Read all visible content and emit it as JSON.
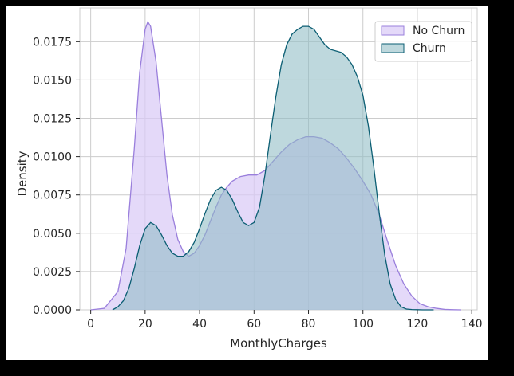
{
  "chart_data": {
    "type": "area",
    "xlabel": "MonthlyCharges",
    "ylabel": "Density",
    "xlim": [
      -4,
      142
    ],
    "ylim": [
      0,
      0.0197
    ],
    "xticks": [
      0,
      20,
      40,
      60,
      80,
      100,
      120,
      140
    ],
    "yticks": [
      0,
      0.0025,
      0.005,
      0.0075,
      0.01,
      0.0125,
      0.015,
      0.0175
    ],
    "ytick_labels": [
      "0.0000",
      "0.0025",
      "0.0050",
      "0.0075",
      "0.0100",
      "0.0125",
      "0.0150",
      "0.0175"
    ],
    "grid": true,
    "legend_position": "top-right",
    "series": [
      {
        "name": "No Churn",
        "fill": "#d9cbf6",
        "stroke": "#9a7fdc",
        "x": [
          0,
          5,
          10,
          13,
          16,
          18,
          20,
          21,
          22,
          24,
          26,
          28,
          30,
          32,
          34,
          36,
          38,
          40,
          42,
          44,
          46,
          48,
          50,
          52,
          55,
          58,
          61,
          64,
          67,
          70,
          73,
          76,
          79,
          82,
          85,
          88,
          91,
          94,
          97,
          100,
          103,
          106,
          109,
          112,
          115,
          118,
          121,
          124,
          127,
          130,
          133,
          136
        ],
        "y": [
          0,
          0.0001,
          0.0012,
          0.004,
          0.0105,
          0.0155,
          0.0183,
          0.0188,
          0.0185,
          0.0162,
          0.0125,
          0.0088,
          0.0062,
          0.0046,
          0.0038,
          0.0035,
          0.0037,
          0.0042,
          0.0049,
          0.0058,
          0.0067,
          0.0075,
          0.008,
          0.0084,
          0.0087,
          0.0088,
          0.0088,
          0.0091,
          0.0097,
          0.0103,
          0.0108,
          0.0111,
          0.0113,
          0.0113,
          0.0112,
          0.0109,
          0.0105,
          0.0099,
          0.0092,
          0.0084,
          0.0075,
          0.0062,
          0.0045,
          0.0029,
          0.0017,
          0.0009,
          0.0004,
          0.0002,
          0.0001,
          3e-05,
          1e-05,
          0
        ]
      },
      {
        "name": "Churn",
        "fill": "#8fbcc4",
        "stroke": "#0b5e73",
        "x": [
          8,
          10,
          12,
          14,
          16,
          18,
          20,
          22,
          24,
          26,
          28,
          30,
          32,
          34,
          36,
          38,
          40,
          42,
          44,
          46,
          48,
          50,
          52,
          54,
          56,
          58,
          60,
          62,
          64,
          66,
          68,
          70,
          72,
          74,
          76,
          78,
          80,
          82,
          84,
          86,
          88,
          90,
          92,
          94,
          96,
          98,
          100,
          102,
          104,
          106,
          108,
          110,
          112,
          114,
          116,
          118,
          120,
          122,
          124,
          126
        ],
        "y": [
          0,
          0.0002,
          0.0006,
          0.0014,
          0.0027,
          0.0042,
          0.0053,
          0.0057,
          0.0055,
          0.0049,
          0.0042,
          0.0037,
          0.0035,
          0.0035,
          0.0038,
          0.0044,
          0.0053,
          0.0063,
          0.0072,
          0.0078,
          0.008,
          0.0078,
          0.0072,
          0.0064,
          0.0057,
          0.0055,
          0.0057,
          0.0067,
          0.0088,
          0.0114,
          0.0139,
          0.016,
          0.0173,
          0.018,
          0.0183,
          0.0185,
          0.0185,
          0.0183,
          0.0178,
          0.0173,
          0.017,
          0.0169,
          0.0168,
          0.0165,
          0.016,
          0.0152,
          0.014,
          0.012,
          0.0093,
          0.0063,
          0.0036,
          0.0017,
          0.0007,
          0.0002,
          5e-05,
          2e-05,
          1e-05,
          0,
          0,
          0
        ]
      }
    ]
  }
}
